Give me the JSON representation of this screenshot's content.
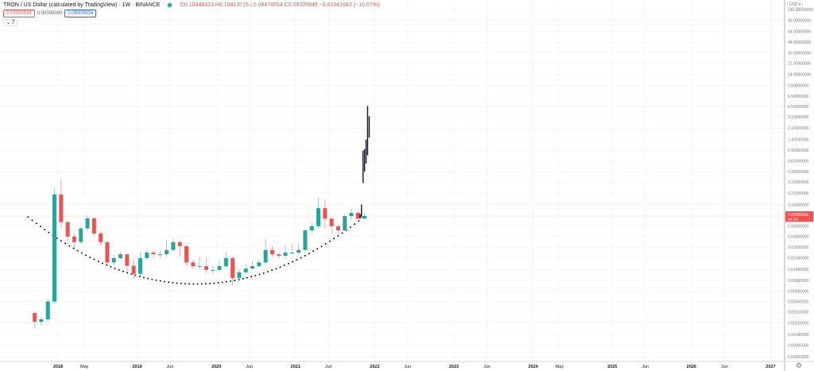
{
  "header": {
    "title": "TRON / US Dollar (calculated by TradingView) · 1W · BINANCE",
    "ohlc": "O0.10348323 H0.10413715 L0.08478554 C0.09305945 −0.01041662 (−10.07%)",
    "value_red": "0.09305934",
    "value_plain": "0.00000000",
    "value_blue": "0.09305934",
    "indicators_toggle": "⌄ 7"
  },
  "price_axis": {
    "currency": "USD ▾",
    "current_price": "0.09305945",
    "countdown": "5d 11h"
  },
  "settings_icon": "gear-icon",
  "colors": {
    "up": "#26a69a",
    "down": "#ef5350",
    "projection": "#131722",
    "price_line": "#ef5350",
    "grid": "#eef1f6"
  },
  "chart_data": {
    "type": "candlestick",
    "title": "TRON / US Dollar (calculated by TradingView) · 1W · BINANCE",
    "y_scale": "log",
    "ylim": [
      0.0005,
      170
    ],
    "grid": true,
    "y_ticks": [
      "140.00000000",
      "96.00000000",
      "64.00000000",
      "44.00000000",
      "30.00000000",
      "21.00000000",
      "14.00000000",
      "9.50000000",
      "6.50000000",
      "4.50000000",
      "3.10000000",
      "2.10000000",
      "1.40000000",
      "0.95000000",
      "0.65000000",
      "0.45000000",
      "0.31000000",
      "0.21000000",
      "0.14000000",
      "0.06500000",
      "0.04500000",
      "0.03100000",
      "0.02100000",
      "0.01400000",
      "0.00950000",
      "0.00650000",
      "0.00450000",
      "0.00310000",
      "0.00210000",
      "0.00140000",
      "0.00095000",
      "0.00063000"
    ],
    "x_ticks": [
      {
        "label": "2018",
        "date": "2018-01-01"
      },
      {
        "label": "May",
        "date": "2018-05-01"
      },
      {
        "label": "2019",
        "date": "2019-01-01"
      },
      {
        "label": "Jun",
        "date": "2019-06-01"
      },
      {
        "label": "2020",
        "date": "2020-01-01"
      },
      {
        "label": "Jun",
        "date": "2020-06-01"
      },
      {
        "label": "2021",
        "date": "2021-01-01"
      },
      {
        "label": "Jun",
        "date": "2021-06-01"
      },
      {
        "label": "2022",
        "date": "2022-01-01"
      },
      {
        "label": "Jun",
        "date": "2022-06-01"
      },
      {
        "label": "2023",
        "date": "2023-01-01"
      },
      {
        "label": "Jun",
        "date": "2023-06-01"
      },
      {
        "label": "2024",
        "date": "2024-01-01"
      },
      {
        "label": "May",
        "date": "2024-05-01"
      },
      {
        "label": "2025",
        "date": "2025-01-01"
      },
      {
        "label": "Jun",
        "date": "2025-06-01"
      },
      {
        "label": "2026",
        "date": "2026-01-01"
      },
      {
        "label": "Jun",
        "date": "2026-06-01"
      },
      {
        "label": "2027",
        "date": "2027-01-01"
      }
    ],
    "candles_ohlc": [
      [
        "2017-09",
        0.003,
        0.0031,
        0.0018,
        0.0022
      ],
      [
        "2017-10",
        0.0022,
        0.0026,
        0.0019,
        0.0024
      ],
      [
        "2017-11",
        0.0024,
        0.005,
        0.0022,
        0.0045
      ],
      [
        "2017-12",
        0.0045,
        0.24,
        0.0042,
        0.2
      ],
      [
        "2018-01",
        0.2,
        0.35,
        0.06,
        0.075
      ],
      [
        "2018-02",
        0.075,
        0.08,
        0.035,
        0.045
      ],
      [
        "2018-03",
        0.045,
        0.05,
        0.028,
        0.037
      ],
      [
        "2018-04",
        0.037,
        0.065,
        0.035,
        0.06
      ],
      [
        "2018-05",
        0.06,
        0.095,
        0.055,
        0.086
      ],
      [
        "2018-06",
        0.086,
        0.088,
        0.045,
        0.05
      ],
      [
        "2018-07",
        0.05,
        0.055,
        0.033,
        0.037
      ],
      [
        "2018-08",
        0.037,
        0.039,
        0.016,
        0.018
      ],
      [
        "2018-09",
        0.018,
        0.024,
        0.016,
        0.021
      ],
      [
        "2018-10",
        0.021,
        0.026,
        0.02,
        0.024
      ],
      [
        "2018-11",
        0.024,
        0.025,
        0.013,
        0.016
      ],
      [
        "2018-12",
        0.016,
        0.02,
        0.0103,
        0.012
      ],
      [
        "2019-01",
        0.012,
        0.026,
        0.011,
        0.021
      ],
      [
        "2019-02",
        0.021,
        0.029,
        0.02,
        0.0255
      ],
      [
        "2019-03",
        0.0255,
        0.027,
        0.021,
        0.024
      ],
      [
        "2019-04",
        0.024,
        0.027,
        0.021,
        0.024
      ],
      [
        "2019-05",
        0.024,
        0.04,
        0.022,
        0.028
      ],
      [
        "2019-06",
        0.028,
        0.042,
        0.027,
        0.037
      ],
      [
        "2019-07",
        0.037,
        0.04,
        0.022,
        0.032
      ],
      [
        "2019-08",
        0.032,
        0.033,
        0.016,
        0.018
      ],
      [
        "2019-09",
        0.018,
        0.02,
        0.014,
        0.0158
      ],
      [
        "2019-10",
        0.0158,
        0.022,
        0.014,
        0.0158
      ],
      [
        "2019-11",
        0.0158,
        0.021,
        0.012,
        0.0138
      ],
      [
        "2019-12",
        0.0138,
        0.016,
        0.012,
        0.0138
      ],
      [
        "2020-01",
        0.0138,
        0.02,
        0.013,
        0.0158
      ],
      [
        "2020-02",
        0.0158,
        0.026,
        0.015,
        0.021
      ],
      [
        "2020-03",
        0.021,
        0.022,
        0.0078,
        0.0103
      ],
      [
        "2020-04",
        0.0103,
        0.014,
        0.0095,
        0.0127
      ],
      [
        "2020-05",
        0.0127,
        0.017,
        0.012,
        0.0145
      ],
      [
        "2020-06",
        0.0145,
        0.019,
        0.014,
        0.0158
      ],
      [
        "2020-07",
        0.0158,
        0.02,
        0.015,
        0.018
      ],
      [
        "2020-08",
        0.018,
        0.042,
        0.017,
        0.028
      ],
      [
        "2020-09",
        0.028,
        0.032,
        0.022,
        0.024
      ],
      [
        "2020-10",
        0.024,
        0.026,
        0.021,
        0.0228
      ],
      [
        "2020-11",
        0.0228,
        0.033,
        0.021,
        0.0255
      ],
      [
        "2020-12",
        0.0255,
        0.036,
        0.024,
        0.0255
      ],
      [
        "2021-01",
        0.0255,
        0.035,
        0.024,
        0.028
      ],
      [
        "2021-02",
        0.028,
        0.06,
        0.027,
        0.056
      ],
      [
        "2021-03",
        0.056,
        0.075,
        0.05,
        0.065
      ],
      [
        "2021-04",
        0.065,
        0.18,
        0.06,
        0.123
      ],
      [
        "2021-05",
        0.123,
        0.165,
        0.06,
        0.085
      ],
      [
        "2021-06",
        0.085,
        0.09,
        0.05,
        0.065
      ],
      [
        "2021-07",
        0.065,
        0.07,
        0.049,
        0.056
      ],
      [
        "2021-08",
        0.056,
        0.1,
        0.055,
        0.093
      ],
      [
        "2021-09",
        0.093,
        0.12,
        0.08,
        0.104
      ],
      [
        "2021-10",
        0.104,
        0.11,
        0.085,
        0.085
      ],
      [
        "2021-11",
        0.085,
        0.104,
        0.085,
        0.093
      ]
    ],
    "projection_bars_low_high": [
      [
        "2021-10-25",
        0.085,
        0.1
      ],
      [
        "2021-11-01",
        0.09,
        0.14
      ],
      [
        "2021-11-08",
        0.3,
        0.95
      ],
      [
        "2021-11-15",
        0.45,
        1.0
      ],
      [
        "2021-11-22",
        0.6,
        1.4
      ],
      [
        "2021-11-29",
        0.8,
        4.6
      ],
      [
        "2021-12-06",
        1.5,
        3.2
      ]
    ],
    "dotted_curve": [
      [
        "2017-08-15",
        0.09
      ],
      [
        "2019-08-01",
        0.0085
      ],
      [
        "2021-11-20",
        0.095
      ]
    ]
  }
}
